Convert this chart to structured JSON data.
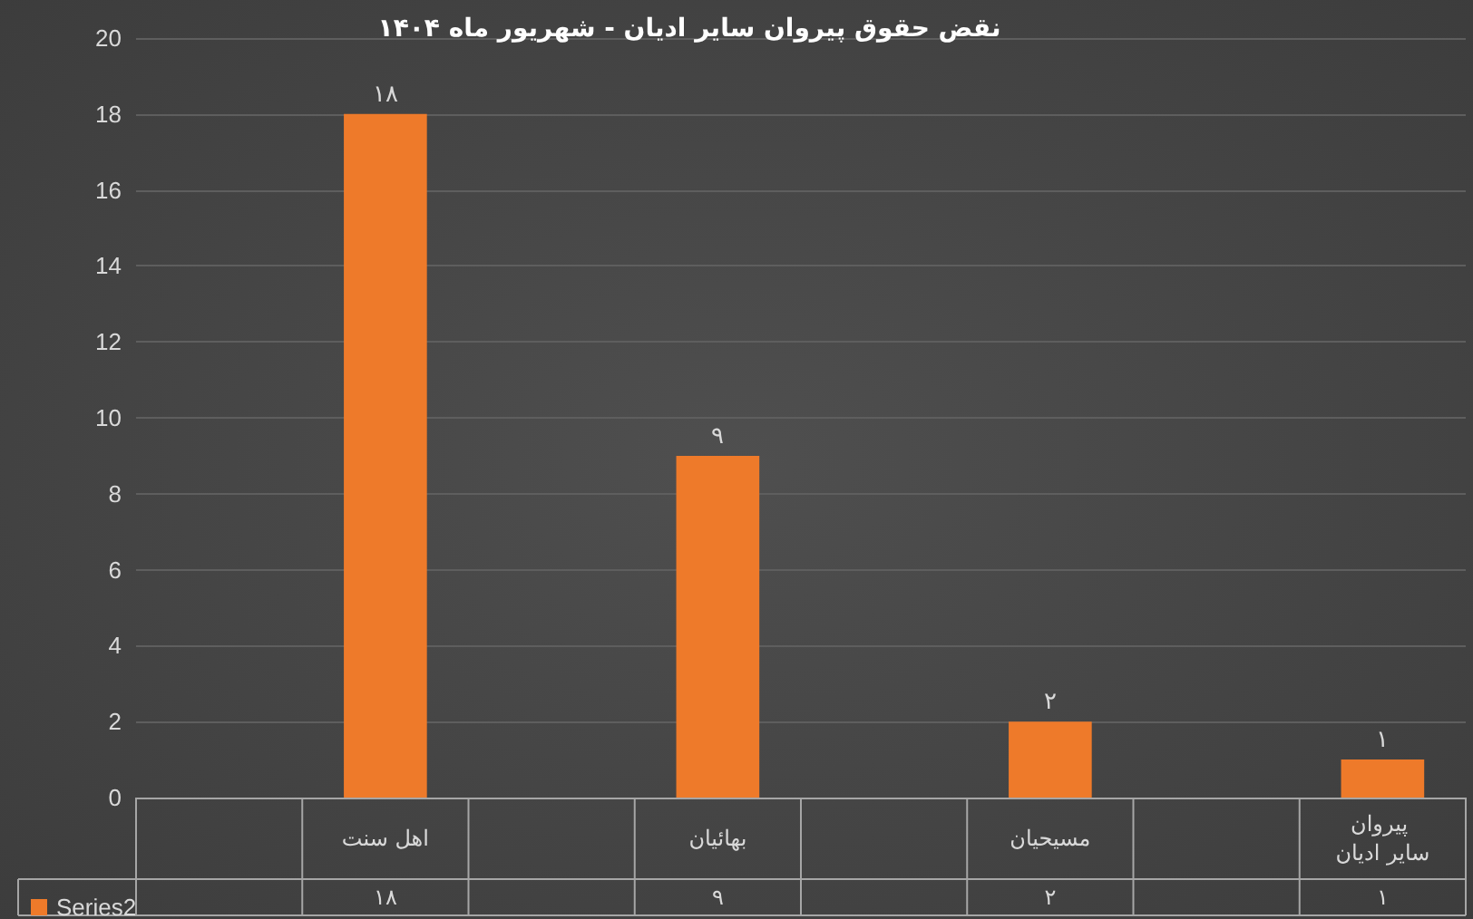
{
  "chart_data": {
    "type": "bar",
    "title": "نقض حقوق پیروان سایر ادیان - شهریور ماه ۱۴۰۴",
    "categories": [
      null,
      "اهل سنت",
      null,
      "بهائیان",
      null,
      "مسیحیان",
      null,
      "پیروان سایر ادیان"
    ],
    "series": [
      {
        "name": "Series2",
        "color": "#ee7a2a",
        "values": [
          null,
          18,
          null,
          9,
          null,
          2,
          null,
          1
        ],
        "value_labels": [
          null,
          "۱۸",
          null,
          "۹",
          null,
          "۲",
          null,
          "۱"
        ]
      }
    ],
    "ylim": [
      0,
      20
    ],
    "yticks": [
      0,
      2,
      4,
      6,
      8,
      10,
      12,
      14,
      16,
      18,
      20
    ],
    "grid": "y",
    "legend": "bottom left"
  }
}
